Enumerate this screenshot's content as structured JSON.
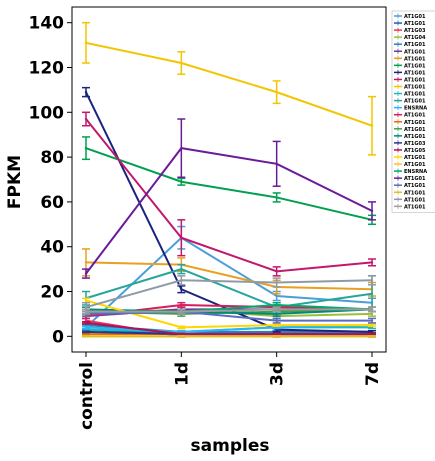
{
  "chart_data": {
    "type": "line",
    "title": "",
    "xlabel": "samples",
    "ylabel": "FPKM",
    "categories": [
      "control",
      "1d",
      "3d",
      "7d"
    ],
    "ylim": [
      -7,
      147
    ],
    "yticks": [
      0,
      20,
      40,
      60,
      80,
      100,
      120,
      140
    ],
    "grid": false,
    "legend_position": "right",
    "series": [
      {
        "name": "AT1G01",
        "color": "#4a9fd8",
        "values": [
          4,
          44,
          18,
          15
        ],
        "errors": [
          1,
          5,
          2,
          2
        ]
      },
      {
        "name": "AT1G01",
        "color": "#1f5fb0",
        "values": [
          3,
          1,
          2,
          2
        ],
        "errors": [
          0.5,
          0.5,
          0.5,
          0.5
        ]
      },
      {
        "name": "AT1G03",
        "color": "#e8365a",
        "values": [
          7,
          0,
          0,
          0
        ],
        "errors": [
          1,
          0.3,
          0.3,
          0.3
        ]
      },
      {
        "name": "AT1G04",
        "color": "#9bbf3a",
        "values": [
          10,
          12,
          9,
          10
        ],
        "errors": [
          1,
          1,
          1,
          1
        ]
      },
      {
        "name": "AT1G01",
        "color": "#2c7fb8",
        "values": [
          5,
          2,
          2,
          2
        ],
        "errors": [
          0.5,
          0.5,
          0.5,
          0.5
        ]
      },
      {
        "name": "AT1G01",
        "color": "#6a3d9a",
        "values": [
          9,
          12,
          12,
          12
        ],
        "errors": [
          1,
          1,
          1,
          1
        ]
      },
      {
        "name": "AT1G01",
        "color": "#e8a020",
        "values": [
          33,
          32,
          22,
          21
        ],
        "errors": [
          6,
          3,
          3,
          3
        ]
      },
      {
        "name": "AT1G01",
        "color": "#00a050",
        "values": [
          84,
          69,
          62,
          52
        ],
        "errors": [
          5,
          1.5,
          2,
          2
        ]
      },
      {
        "name": "AT1G01",
        "color": "#1a237e",
        "values": [
          109,
          21,
          3,
          2
        ],
        "errors": [
          2,
          1.5,
          1,
          0.5
        ]
      },
      {
        "name": "AT1G01",
        "color": "#c2186b",
        "values": [
          97,
          44,
          29,
          33
        ],
        "errors": [
          3,
          8,
          2,
          1.5
        ]
      },
      {
        "name": "AT1G01",
        "color": "#f2c500",
        "values": [
          131,
          122,
          109,
          94
        ],
        "errors": [
          9,
          5,
          5,
          13
        ]
      },
      {
        "name": "AT1G01",
        "color": "#1dbbbb",
        "values": [
          3,
          2,
          4,
          4
        ],
        "errors": [
          0.5,
          0.5,
          0.5,
          0.5
        ]
      },
      {
        "name": "AT1G01",
        "color": "#26a69a",
        "values": [
          17,
          30,
          13,
          19
        ],
        "errors": [
          3,
          2,
          2,
          8
        ]
      },
      {
        "name": "ENSRNA",
        "color": "#29b6f6",
        "values": [
          4,
          2,
          4,
          5
        ],
        "errors": [
          0.5,
          0.5,
          0.5,
          0.5
        ]
      },
      {
        "name": "AT1G01",
        "color": "#d81b60",
        "values": [
          9,
          14,
          13,
          12
        ],
        "errors": [
          1,
          1,
          1,
          1
        ]
      },
      {
        "name": "AT1G01",
        "color": "#ef6c00",
        "values": [
          1,
          1,
          1,
          1
        ],
        "errors": [
          0.3,
          0.3,
          0.3,
          0.3
        ]
      },
      {
        "name": "AT1G01",
        "color": "#43a047",
        "values": [
          11,
          10,
          11,
          12
        ],
        "errors": [
          1,
          1,
          1,
          1
        ]
      },
      {
        "name": "AT1G01",
        "color": "#00897b",
        "values": [
          12,
          11,
          10,
          12
        ],
        "errors": [
          1,
          1,
          1,
          1
        ]
      },
      {
        "name": "AT1G03",
        "color": "#283593",
        "values": [
          2,
          1,
          1,
          1
        ],
        "errors": [
          0.3,
          0.3,
          0.3,
          0.3
        ]
      },
      {
        "name": "AT1G05",
        "color": "#ad1457",
        "values": [
          6,
          1,
          1,
          1
        ],
        "errors": [
          0.5,
          0.3,
          0.3,
          0.3
        ]
      },
      {
        "name": "AT1G01",
        "color": "#ffd600",
        "values": [
          16,
          4,
          5,
          5
        ],
        "errors": [
          1,
          0.5,
          0.5,
          0.5
        ]
      },
      {
        "name": "AT1G01",
        "color": "#fbc02d",
        "values": [
          0,
          0,
          0,
          0
        ],
        "errors": [
          0.2,
          0.2,
          0.2,
          0.2
        ]
      },
      {
        "name": "ENSRNA",
        "color": "#00a86b",
        "values": [
          10,
          11,
          14,
          12
        ],
        "errors": [
          1,
          1,
          1,
          1
        ]
      },
      {
        "name": "AT1G01",
        "color": "#6a1b9a",
        "values": [
          28,
          84,
          77,
          56
        ],
        "errors": [
          2,
          13,
          10,
          4
        ]
      },
      {
        "name": "AT1G01",
        "color": "#5c6bc0",
        "values": [
          10,
          11,
          7,
          7
        ],
        "errors": [
          1,
          1,
          1,
          1
        ]
      },
      {
        "name": "AT1G01",
        "color": "#e0c020",
        "values": [
          0,
          0,
          0,
          0
        ],
        "errors": [
          0.2,
          0.2,
          0.2,
          0.2
        ]
      },
      {
        "name": "AT1G01",
        "color": "#8e9aa6",
        "values": [
          13,
          25,
          24,
          25
        ],
        "errors": [
          2,
          2,
          2,
          2
        ]
      },
      {
        "name": "AT1G01",
        "color": "#9e9e9e",
        "values": [
          11,
          11,
          12,
          12
        ],
        "errors": [
          1,
          1,
          1,
          1
        ]
      }
    ]
  }
}
